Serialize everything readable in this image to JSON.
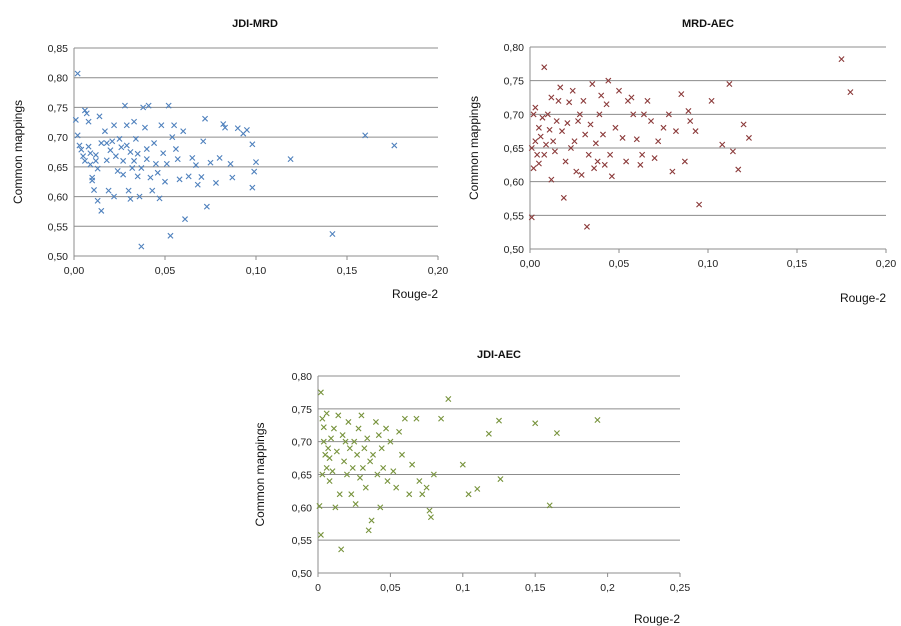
{
  "chart_data": [
    {
      "type": "scatter",
      "title": "JDI-MRD",
      "xlabel": "Rouge-2",
      "ylabel": "Common mappings",
      "xlim": [
        0,
        0.2
      ],
      "ylim": [
        0.5,
        0.85
      ],
      "x_ticks": [
        "0,00",
        "0,05",
        "0,10",
        "0,15",
        "0,20"
      ],
      "y_ticks": [
        "0,50",
        "0,55",
        "0,60",
        "0,65",
        "0,70",
        "0,75",
        "0,80",
        "0,85"
      ],
      "grid": "horizontal",
      "marker": "x",
      "color": "#4F81BD",
      "points": [
        [
          0.002,
          0.807
        ],
        [
          0.001,
          0.729
        ],
        [
          0.002,
          0.703
        ],
        [
          0.003,
          0.686
        ],
        [
          0.004,
          0.679
        ],
        [
          0.005,
          0.668
        ],
        [
          0.006,
          0.66
        ],
        [
          0.006,
          0.745
        ],
        [
          0.007,
          0.74
        ],
        [
          0.008,
          0.726
        ],
        [
          0.008,
          0.684
        ],
        [
          0.009,
          0.673
        ],
        [
          0.009,
          0.654
        ],
        [
          0.01,
          0.632
        ],
        [
          0.01,
          0.627
        ],
        [
          0.011,
          0.611
        ],
        [
          0.012,
          0.67
        ],
        [
          0.012,
          0.66
        ],
        [
          0.013,
          0.647
        ],
        [
          0.013,
          0.593
        ],
        [
          0.014,
          0.735
        ],
        [
          0.015,
          0.69
        ],
        [
          0.015,
          0.576
        ],
        [
          0.017,
          0.71
        ],
        [
          0.018,
          0.69
        ],
        [
          0.018,
          0.661
        ],
        [
          0.019,
          0.61
        ],
        [
          0.02,
          0.678
        ],
        [
          0.021,
          0.693
        ],
        [
          0.022,
          0.72
        ],
        [
          0.022,
          0.6
        ],
        [
          0.023,
          0.668
        ],
        [
          0.024,
          0.643
        ],
        [
          0.025,
          0.697
        ],
        [
          0.026,
          0.683
        ],
        [
          0.027,
          0.66
        ],
        [
          0.027,
          0.637
        ],
        [
          0.028,
          0.753
        ],
        [
          0.029,
          0.72
        ],
        [
          0.029,
          0.686
        ],
        [
          0.03,
          0.61
        ],
        [
          0.031,
          0.675
        ],
        [
          0.031,
          0.596
        ],
        [
          0.032,
          0.648
        ],
        [
          0.033,
          0.726
        ],
        [
          0.033,
          0.66
        ],
        [
          0.034,
          0.697
        ],
        [
          0.035,
          0.672
        ],
        [
          0.035,
          0.634
        ],
        [
          0.036,
          0.6
        ],
        [
          0.037,
          0.648
        ],
        [
          0.037,
          0.516
        ],
        [
          0.038,
          0.75
        ],
        [
          0.039,
          0.716
        ],
        [
          0.04,
          0.68
        ],
        [
          0.04,
          0.663
        ],
        [
          0.041,
          0.753
        ],
        [
          0.042,
          0.632
        ],
        [
          0.043,
          0.61
        ],
        [
          0.044,
          0.69
        ],
        [
          0.045,
          0.655
        ],
        [
          0.046,
          0.64
        ],
        [
          0.047,
          0.597
        ],
        [
          0.048,
          0.72
        ],
        [
          0.049,
          0.673
        ],
        [
          0.05,
          0.625
        ],
        [
          0.051,
          0.655
        ],
        [
          0.052,
          0.753
        ],
        [
          0.053,
          0.534
        ],
        [
          0.054,
          0.7
        ],
        [
          0.055,
          0.72
        ],
        [
          0.056,
          0.68
        ],
        [
          0.057,
          0.663
        ],
        [
          0.058,
          0.629
        ],
        [
          0.06,
          0.71
        ],
        [
          0.061,
          0.562
        ],
        [
          0.063,
          0.634
        ],
        [
          0.065,
          0.665
        ],
        [
          0.067,
          0.653
        ],
        [
          0.068,
          0.62
        ],
        [
          0.07,
          0.633
        ],
        [
          0.071,
          0.693
        ],
        [
          0.072,
          0.731
        ],
        [
          0.073,
          0.583
        ],
        [
          0.075,
          0.657
        ],
        [
          0.078,
          0.623
        ],
        [
          0.08,
          0.665
        ],
        [
          0.082,
          0.722
        ],
        [
          0.083,
          0.716
        ],
        [
          0.086,
          0.655
        ],
        [
          0.087,
          0.632
        ],
        [
          0.09,
          0.715
        ],
        [
          0.093,
          0.706
        ],
        [
          0.095,
          0.712
        ],
        [
          0.098,
          0.688
        ],
        [
          0.098,
          0.615
        ],
        [
          0.099,
          0.642
        ],
        [
          0.1,
          0.658
        ],
        [
          0.119,
          0.663
        ],
        [
          0.142,
          0.537
        ],
        [
          0.16,
          0.703
        ],
        [
          0.176,
          0.686
        ]
      ]
    },
    {
      "type": "scatter",
      "title": "MRD-AEC",
      "xlabel": "Rouge-2",
      "ylabel": "Common mappings",
      "xlim": [
        0,
        0.2
      ],
      "ylim": [
        0.5,
        0.8
      ],
      "x_ticks": [
        "0,00",
        "0,05",
        "0,10",
        "0,15",
        "0,20"
      ],
      "y_ticks": [
        "0,50",
        "0,55",
        "0,60",
        "0,65",
        "0,70",
        "0,75",
        "0,80"
      ],
      "grid": "horizontal",
      "marker": "x",
      "color": "#8B3A3A",
      "points": [
        [
          0.001,
          0.547
        ],
        [
          0.001,
          0.65
        ],
        [
          0.002,
          0.62
        ],
        [
          0.002,
          0.7
        ],
        [
          0.003,
          0.66
        ],
        [
          0.003,
          0.71
        ],
        [
          0.004,
          0.64
        ],
        [
          0.005,
          0.68
        ],
        [
          0.005,
          0.627
        ],
        [
          0.006,
          0.667
        ],
        [
          0.007,
          0.695
        ],
        [
          0.008,
          0.77
        ],
        [
          0.008,
          0.64
        ],
        [
          0.009,
          0.655
        ],
        [
          0.01,
          0.7
        ],
        [
          0.011,
          0.677
        ],
        [
          0.012,
          0.603
        ],
        [
          0.012,
          0.725
        ],
        [
          0.013,
          0.66
        ],
        [
          0.014,
          0.645
        ],
        [
          0.015,
          0.69
        ],
        [
          0.016,
          0.72
        ],
        [
          0.017,
          0.74
        ],
        [
          0.018,
          0.675
        ],
        [
          0.019,
          0.576
        ],
        [
          0.02,
          0.63
        ],
        [
          0.021,
          0.687
        ],
        [
          0.022,
          0.718
        ],
        [
          0.023,
          0.65
        ],
        [
          0.024,
          0.735
        ],
        [
          0.025,
          0.66
        ],
        [
          0.026,
          0.615
        ],
        [
          0.027,
          0.69
        ],
        [
          0.028,
          0.7
        ],
        [
          0.029,
          0.61
        ],
        [
          0.03,
          0.72
        ],
        [
          0.031,
          0.67
        ],
        [
          0.032,
          0.533
        ],
        [
          0.033,
          0.64
        ],
        [
          0.034,
          0.685
        ],
        [
          0.035,
          0.745
        ],
        [
          0.036,
          0.62
        ],
        [
          0.037,
          0.657
        ],
        [
          0.038,
          0.63
        ],
        [
          0.039,
          0.7
        ],
        [
          0.04,
          0.728
        ],
        [
          0.041,
          0.67
        ],
        [
          0.042,
          0.625
        ],
        [
          0.043,
          0.715
        ],
        [
          0.044,
          0.75
        ],
        [
          0.045,
          0.64
        ],
        [
          0.046,
          0.608
        ],
        [
          0.048,
          0.68
        ],
        [
          0.05,
          0.735
        ],
        [
          0.052,
          0.665
        ],
        [
          0.054,
          0.63
        ],
        [
          0.055,
          0.72
        ],
        [
          0.057,
          0.725
        ],
        [
          0.058,
          0.7
        ],
        [
          0.06,
          0.663
        ],
        [
          0.062,
          0.625
        ],
        [
          0.063,
          0.64
        ],
        [
          0.064,
          0.7
        ],
        [
          0.066,
          0.72
        ],
        [
          0.068,
          0.69
        ],
        [
          0.07,
          0.635
        ],
        [
          0.072,
          0.66
        ],
        [
          0.075,
          0.68
        ],
        [
          0.078,
          0.7
        ],
        [
          0.08,
          0.615
        ],
        [
          0.082,
          0.675
        ],
        [
          0.085,
          0.73
        ],
        [
          0.087,
          0.63
        ],
        [
          0.089,
          0.705
        ],
        [
          0.09,
          0.69
        ],
        [
          0.093,
          0.675
        ],
        [
          0.095,
          0.566
        ],
        [
          0.102,
          0.72
        ],
        [
          0.108,
          0.655
        ],
        [
          0.112,
          0.745
        ],
        [
          0.114,
          0.645
        ],
        [
          0.117,
          0.618
        ],
        [
          0.12,
          0.685
        ],
        [
          0.123,
          0.665
        ],
        [
          0.175,
          0.782
        ],
        [
          0.18,
          0.733
        ]
      ]
    },
    {
      "type": "scatter",
      "title": "JDI-AEC",
      "xlabel": "Rouge-2",
      "ylabel": "Common mappings",
      "xlim": [
        0,
        0.25
      ],
      "ylim": [
        0.5,
        0.8
      ],
      "x_ticks": [
        "0",
        "0,05",
        "0,1",
        "0,15",
        "0,2",
        "0,25"
      ],
      "y_ticks": [
        "0,50",
        "0,55",
        "0,60",
        "0,65",
        "0,70",
        "0,75",
        "0,80"
      ],
      "grid": "horizontal",
      "marker": "x",
      "color": "#77933C",
      "points": [
        [
          0.001,
          0.602
        ],
        [
          0.002,
          0.558
        ],
        [
          0.002,
          0.775
        ],
        [
          0.003,
          0.735
        ],
        [
          0.003,
          0.65
        ],
        [
          0.004,
          0.722
        ],
        [
          0.004,
          0.7
        ],
        [
          0.005,
          0.68
        ],
        [
          0.006,
          0.66
        ],
        [
          0.006,
          0.743
        ],
        [
          0.007,
          0.69
        ],
        [
          0.008,
          0.675
        ],
        [
          0.008,
          0.64
        ],
        [
          0.009,
          0.705
        ],
        [
          0.01,
          0.655
        ],
        [
          0.011,
          0.72
        ],
        [
          0.012,
          0.6
        ],
        [
          0.013,
          0.685
        ],
        [
          0.014,
          0.74
        ],
        [
          0.015,
          0.62
        ],
        [
          0.016,
          0.536
        ],
        [
          0.017,
          0.71
        ],
        [
          0.018,
          0.67
        ],
        [
          0.019,
          0.7
        ],
        [
          0.02,
          0.65
        ],
        [
          0.021,
          0.73
        ],
        [
          0.022,
          0.69
        ],
        [
          0.023,
          0.62
        ],
        [
          0.024,
          0.66
        ],
        [
          0.025,
          0.7
        ],
        [
          0.026,
          0.605
        ],
        [
          0.027,
          0.68
        ],
        [
          0.028,
          0.72
        ],
        [
          0.029,
          0.645
        ],
        [
          0.03,
          0.74
        ],
        [
          0.031,
          0.66
        ],
        [
          0.032,
          0.69
        ],
        [
          0.033,
          0.63
        ],
        [
          0.034,
          0.705
        ],
        [
          0.035,
          0.565
        ],
        [
          0.036,
          0.67
        ],
        [
          0.037,
          0.58
        ],
        [
          0.038,
          0.68
        ],
        [
          0.04,
          0.73
        ],
        [
          0.041,
          0.65
        ],
        [
          0.042,
          0.71
        ],
        [
          0.043,
          0.6
        ],
        [
          0.044,
          0.69
        ],
        [
          0.045,
          0.66
        ],
        [
          0.047,
          0.72
        ],
        [
          0.048,
          0.64
        ],
        [
          0.05,
          0.7
        ],
        [
          0.052,
          0.655
        ],
        [
          0.054,
          0.63
        ],
        [
          0.056,
          0.715
        ],
        [
          0.058,
          0.68
        ],
        [
          0.06,
          0.735
        ],
        [
          0.063,
          0.62
        ],
        [
          0.065,
          0.665
        ],
        [
          0.068,
          0.735
        ],
        [
          0.07,
          0.64
        ],
        [
          0.072,
          0.62
        ],
        [
          0.075,
          0.63
        ],
        [
          0.077,
          0.595
        ],
        [
          0.078,
          0.585
        ],
        [
          0.08,
          0.65
        ],
        [
          0.085,
          0.735
        ],
        [
          0.09,
          0.765
        ],
        [
          0.1,
          0.665
        ],
        [
          0.104,
          0.62
        ],
        [
          0.11,
          0.628
        ],
        [
          0.118,
          0.712
        ],
        [
          0.125,
          0.732
        ],
        [
          0.126,
          0.643
        ],
        [
          0.15,
          0.728
        ],
        [
          0.16,
          0.603
        ],
        [
          0.165,
          0.713
        ],
        [
          0.193,
          0.733
        ]
      ]
    }
  ]
}
